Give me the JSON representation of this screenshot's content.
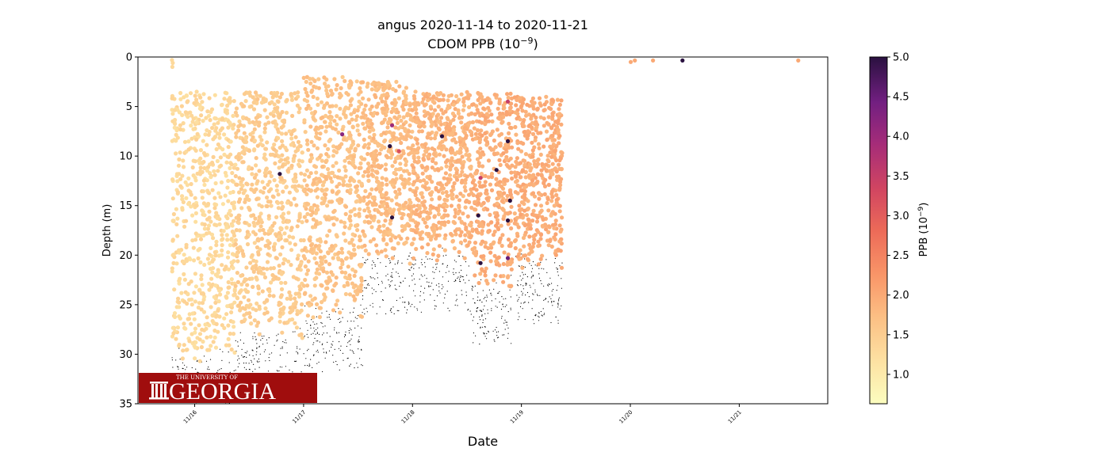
{
  "chart_data": {
    "type": "scatter",
    "title_line1": "angus 2020-11-14 to 2020-11-21",
    "title_line2_base": "CDOM PPB (10",
    "title_line2_exp": "−9",
    "title_line2_end": ")",
    "xlabel": "Date",
    "ylabel": "Depth (m)",
    "x_ticks": [
      "11/16",
      "11/17",
      "11/18",
      "11/19",
      "11/20",
      "11/21"
    ],
    "x_range": [
      "2020-11-15 11:30",
      "2020-11-21 19:30"
    ],
    "y_ticks": [
      0,
      5,
      10,
      15,
      20,
      25,
      30,
      35
    ],
    "ylim": [
      35,
      0
    ],
    "y_inverted": true,
    "colorbar": {
      "label_base": "PPB (10",
      "label_exp": "−9",
      "label_end": ")",
      "ticks": [
        "1.0",
        "1.5",
        "2.0",
        "2.5",
        "3.0",
        "3.5",
        "4.0",
        "4.5",
        "5.0"
      ],
      "range": [
        0.63,
        5.0
      ],
      "colormap": "magma_r"
    },
    "profiles": [
      {
        "start": "2020-11-15 19:00",
        "end": "2020-11-16 09:00",
        "min_depth": 3.5,
        "max_depth": 31.5,
        "value": 1.3
      },
      {
        "start": "2020-11-16 09:00",
        "end": "2020-11-16 23:45",
        "min_depth": 3.5,
        "max_depth": 29,
        "value": 1.5
      },
      {
        "start": "2020-11-17 00:00",
        "end": "2020-11-17 13:00",
        "min_depth": 2,
        "max_depth": 27,
        "value": 1.65
      },
      {
        "start": "2020-11-17 13:00",
        "end": "2020-11-18 00:00",
        "min_depth": 2.5,
        "max_depth": 21,
        "value": 1.75
      },
      {
        "start": "2020-11-18 00:00",
        "end": "2020-11-18 13:00",
        "min_depth": 3.5,
        "max_depth": 21,
        "value": 1.85
      },
      {
        "start": "2020-11-18 13:00",
        "end": "2020-11-18 22:00",
        "min_depth": 3.5,
        "max_depth": 24,
        "value": 1.95
      },
      {
        "start": "2020-11-18 22:30",
        "end": "2020-11-19 09:00",
        "min_depth": 4,
        "max_depth": 22,
        "value": 1.95
      }
    ],
    "surface_points": [
      {
        "time": "2020-11-20 00:05",
        "depth": 0.5,
        "value": 2.0
      },
      {
        "time": "2020-11-20 01:00",
        "depth": 0.35,
        "value": 2.0
      },
      {
        "time": "2020-11-20 05:00",
        "depth": 0.35,
        "value": 2.0
      },
      {
        "time": "2020-11-20 11:30",
        "depth": 0.35,
        "value": 5.0
      },
      {
        "time": "2020-11-21 13:00",
        "depth": 0.35,
        "value": 2.0
      }
    ],
    "high_points": [
      {
        "time": "2020-11-16 18:45",
        "depth": 11.8,
        "value": 5.0
      },
      {
        "time": "2020-11-17 08:30",
        "depth": 7.8,
        "value": 4.2
      },
      {
        "time": "2020-11-17 19:30",
        "depth": 16.2,
        "value": 5.0
      },
      {
        "time": "2020-11-17 19:30",
        "depth": 6.9,
        "value": 4.0
      },
      {
        "time": "2020-11-17 21:00",
        "depth": 9.5,
        "value": 3.2
      },
      {
        "time": "2020-11-17 19:00",
        "depth": 9.0,
        "value": 5.0
      },
      {
        "time": "2020-11-18 06:30",
        "depth": 8.0,
        "value": 5.0
      },
      {
        "time": "2020-11-18 14:30",
        "depth": 16.0,
        "value": 5.0
      },
      {
        "time": "2020-11-18 15:00",
        "depth": 20.8,
        "value": 5.0
      },
      {
        "time": "2020-11-18 15:00",
        "depth": 12.2,
        "value": 3.5
      },
      {
        "time": "2020-11-18 21:00",
        "depth": 4.5,
        "value": 3.5
      },
      {
        "time": "2020-11-18 21:00",
        "depth": 8.5,
        "value": 5.0
      },
      {
        "time": "2020-11-18 21:00",
        "depth": 16.5,
        "value": 5.0
      },
      {
        "time": "2020-11-18 21:30",
        "depth": 14.5,
        "value": 5.0
      },
      {
        "time": "2020-11-18 18:30",
        "depth": 11.4,
        "value": 5.0
      },
      {
        "time": "2020-11-18 21:00",
        "depth": 20.3,
        "value": 4.5
      }
    ],
    "logo_text_small": "THE UNIVERSITY OF",
    "logo_text_large": "GEORGIA"
  }
}
